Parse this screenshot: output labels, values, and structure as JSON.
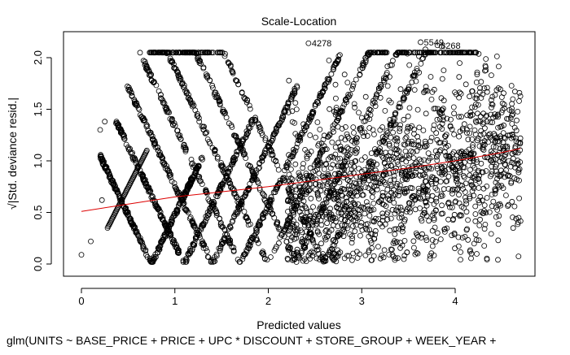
{
  "chart_data": {
    "type": "scatter",
    "title": "Scale-Location",
    "xlabel": "Predicted values",
    "ylabel": "√|Std. deviance resid.|",
    "subtitle": "glm(UNITS ~ BASE_PRICE + PRICE + UPC * DISCOUNT + STORE_GROUP + WEEK_YEAR +",
    "xlim": [
      0,
      4.75
    ],
    "ylim": [
      0,
      2.2
    ],
    "xticks": [
      "0",
      "1",
      "2",
      "3",
      "4"
    ],
    "yticks": [
      "0.0",
      "0.5",
      "1.0",
      "1.5",
      "2.0"
    ],
    "grid": false,
    "point_style": "open-circle",
    "point_color": "#000000",
    "trend_color": "#dd0000",
    "trend_line": {
      "x": [
        0.0,
        0.5,
        1.0,
        1.5,
        2.0,
        2.5,
        3.0,
        3.5,
        4.0,
        4.5,
        4.7
      ],
      "y": [
        0.51,
        0.58,
        0.65,
        0.7,
        0.75,
        0.81,
        0.87,
        0.93,
        1.0,
        1.08,
        1.12
      ]
    },
    "labeled_points": [
      {
        "label": "4278",
        "x": 2.43,
        "y": 2.14
      },
      {
        "label": "5549",
        "x": 3.63,
        "y": 2.15
      },
      {
        "label": "8268",
        "x": 3.81,
        "y": 2.12
      }
    ],
    "series_summary": {
      "approx_point_count": 9000,
      "clusters_x": [
        0.75,
        1.1,
        1.4,
        1.7,
        2.0,
        2.3,
        2.6
      ],
      "dense_cloud_x_range": [
        2.2,
        4.7
      ],
      "dense_cloud_y_range": [
        0.0,
        2.1
      ]
    },
    "outliers": [
      {
        "x": 0.0,
        "y": 0.09
      },
      {
        "x": 0.1,
        "y": 0.22
      },
      {
        "x": 0.2,
        "y": 1.3
      },
      {
        "x": 0.25,
        "y": 1.38
      },
      {
        "x": 0.85,
        "y": 1.64
      },
      {
        "x": 0.22,
        "y": 0.62
      }
    ]
  }
}
